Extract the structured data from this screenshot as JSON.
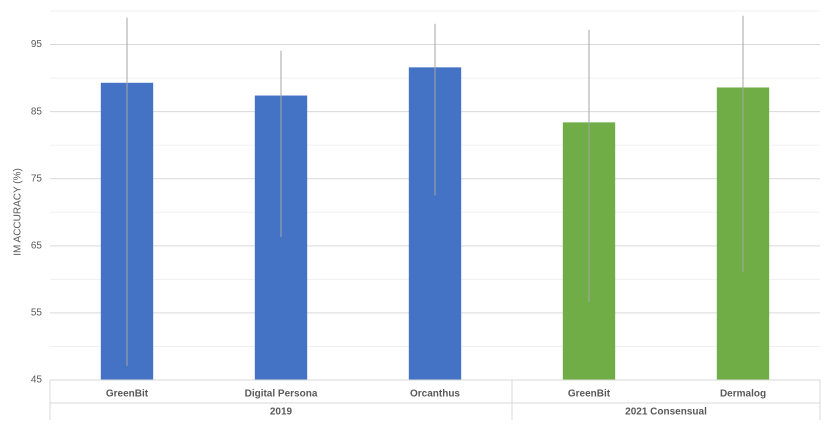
{
  "chart_data": {
    "type": "bar",
    "y_label": "IM ACCURACY (%)",
    "ylim": [
      45,
      100
    ],
    "yticks": [
      45,
      55,
      65,
      75,
      85,
      95
    ],
    "minor_yticks": [
      50,
      60,
      70,
      80,
      90,
      100
    ],
    "grid": true,
    "groups": [
      {
        "name": "2019",
        "color": "#4472c4",
        "categories": [
          "GreenBit",
          "Digital Persona",
          "Orcanthus"
        ],
        "values": [
          89.3,
          87.4,
          91.6
        ],
        "error_upper": [
          99.0,
          94.1,
          98.1
        ],
        "error_lower": [
          47.1,
          66.3,
          72.5
        ]
      },
      {
        "name": "2021 Consensual",
        "color": "#70ad47",
        "categories": [
          "GreenBit",
          "Dermalog"
        ],
        "values": [
          83.4,
          88.6
        ],
        "error_upper": [
          97.2,
          99.3
        ],
        "error_lower": [
          56.6,
          61.1
        ]
      }
    ]
  }
}
